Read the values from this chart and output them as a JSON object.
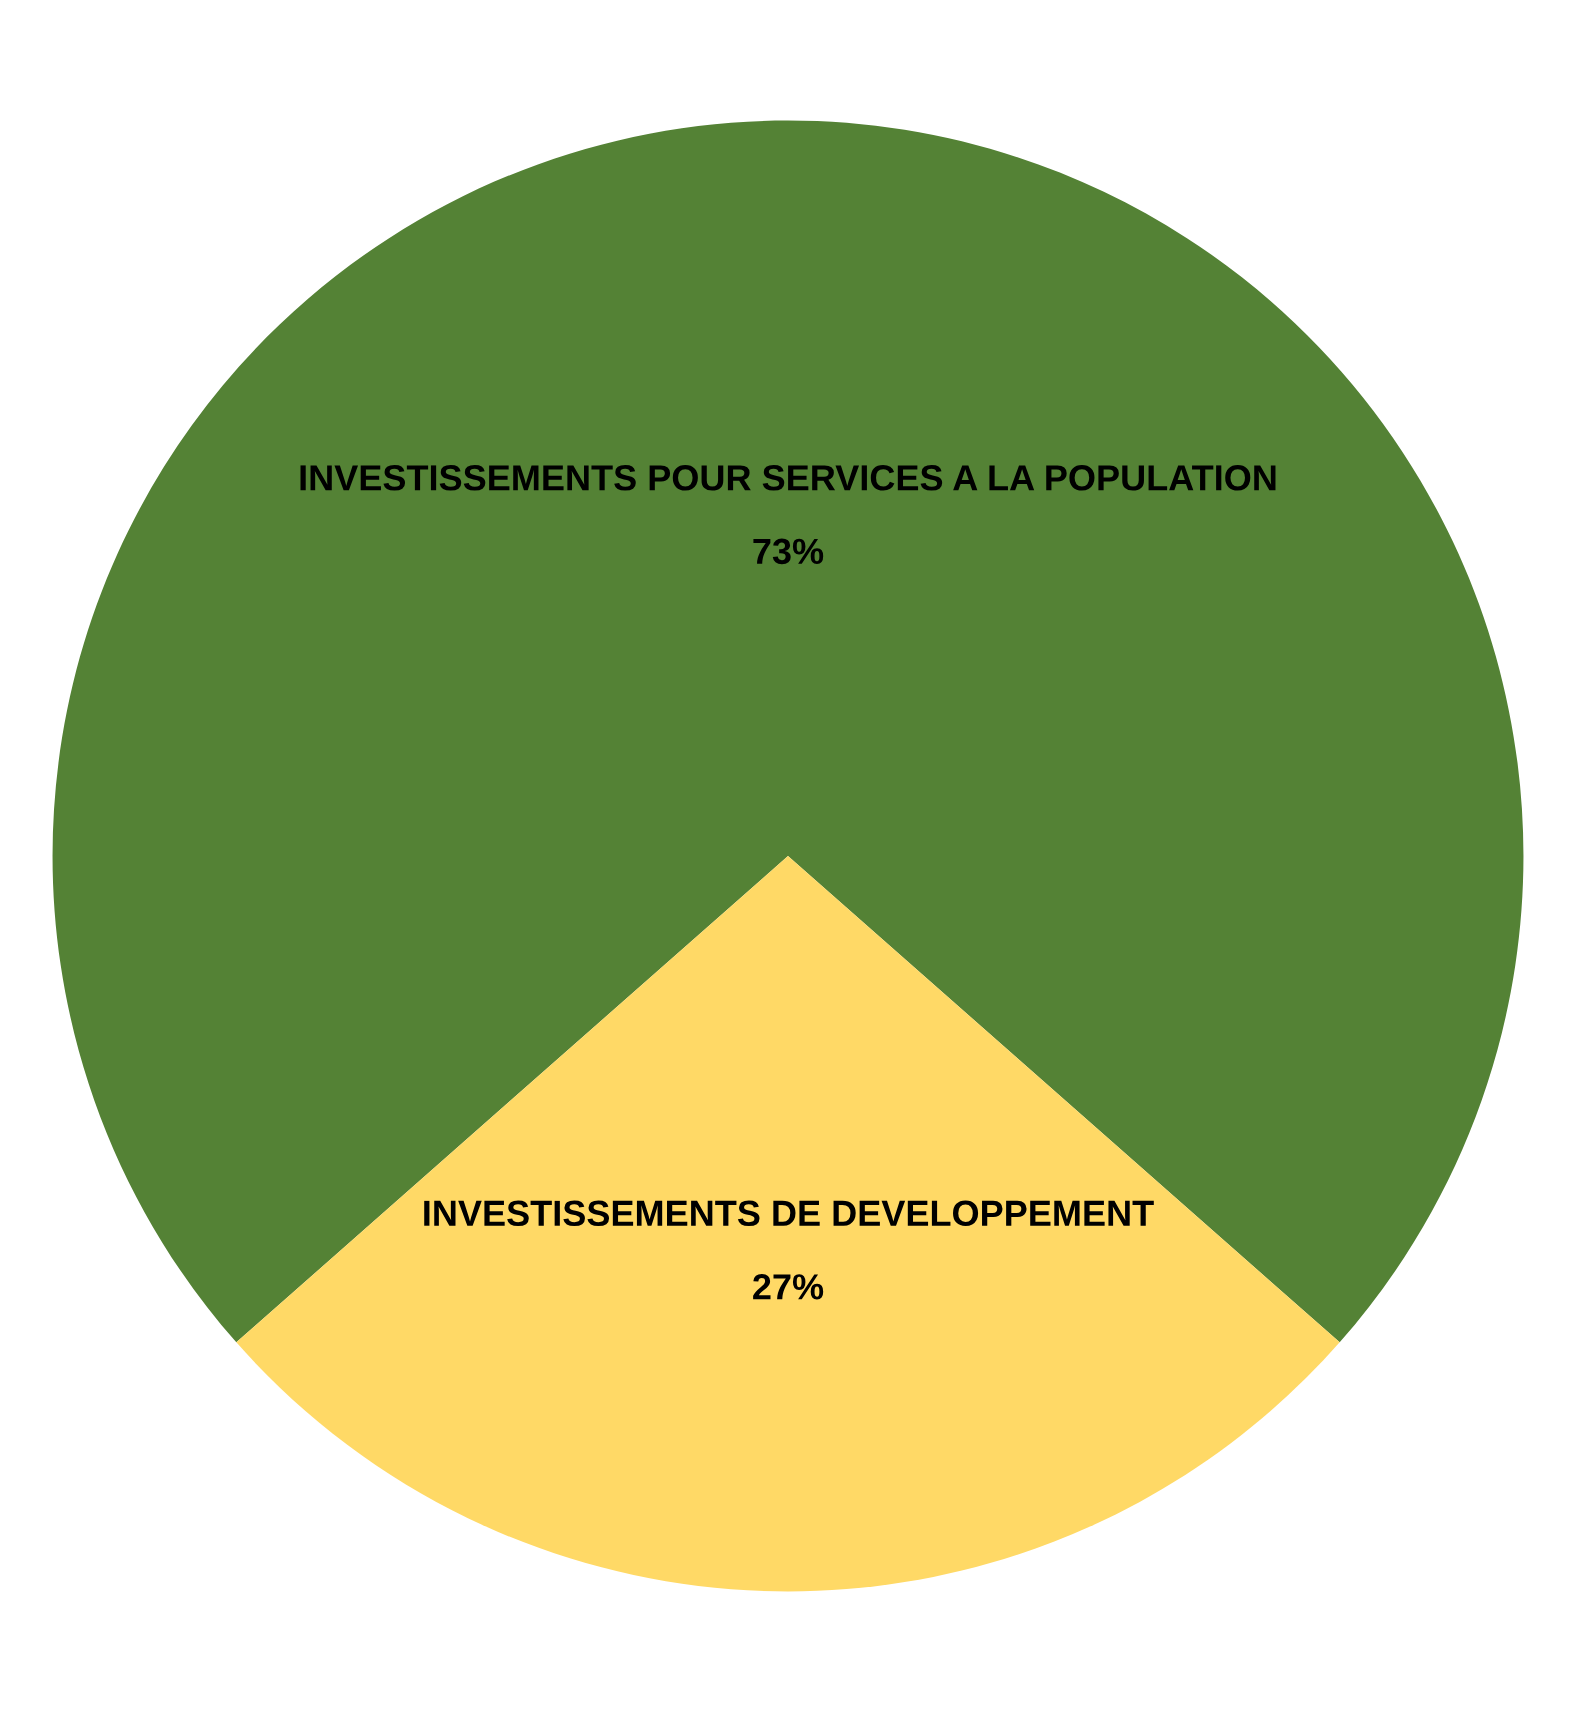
{
  "chart_data": {
    "type": "pie",
    "categories": [
      "INVESTISSEMENTS POUR SERVICES A LA POPULATION",
      "INVESTISSEMENTS DE DEVELOPPEMENT"
    ],
    "values": [
      73,
      27
    ],
    "colors": [
      "#548235",
      "#ffd966"
    ],
    "value_labels": [
      "73%",
      "27%"
    ]
  }
}
